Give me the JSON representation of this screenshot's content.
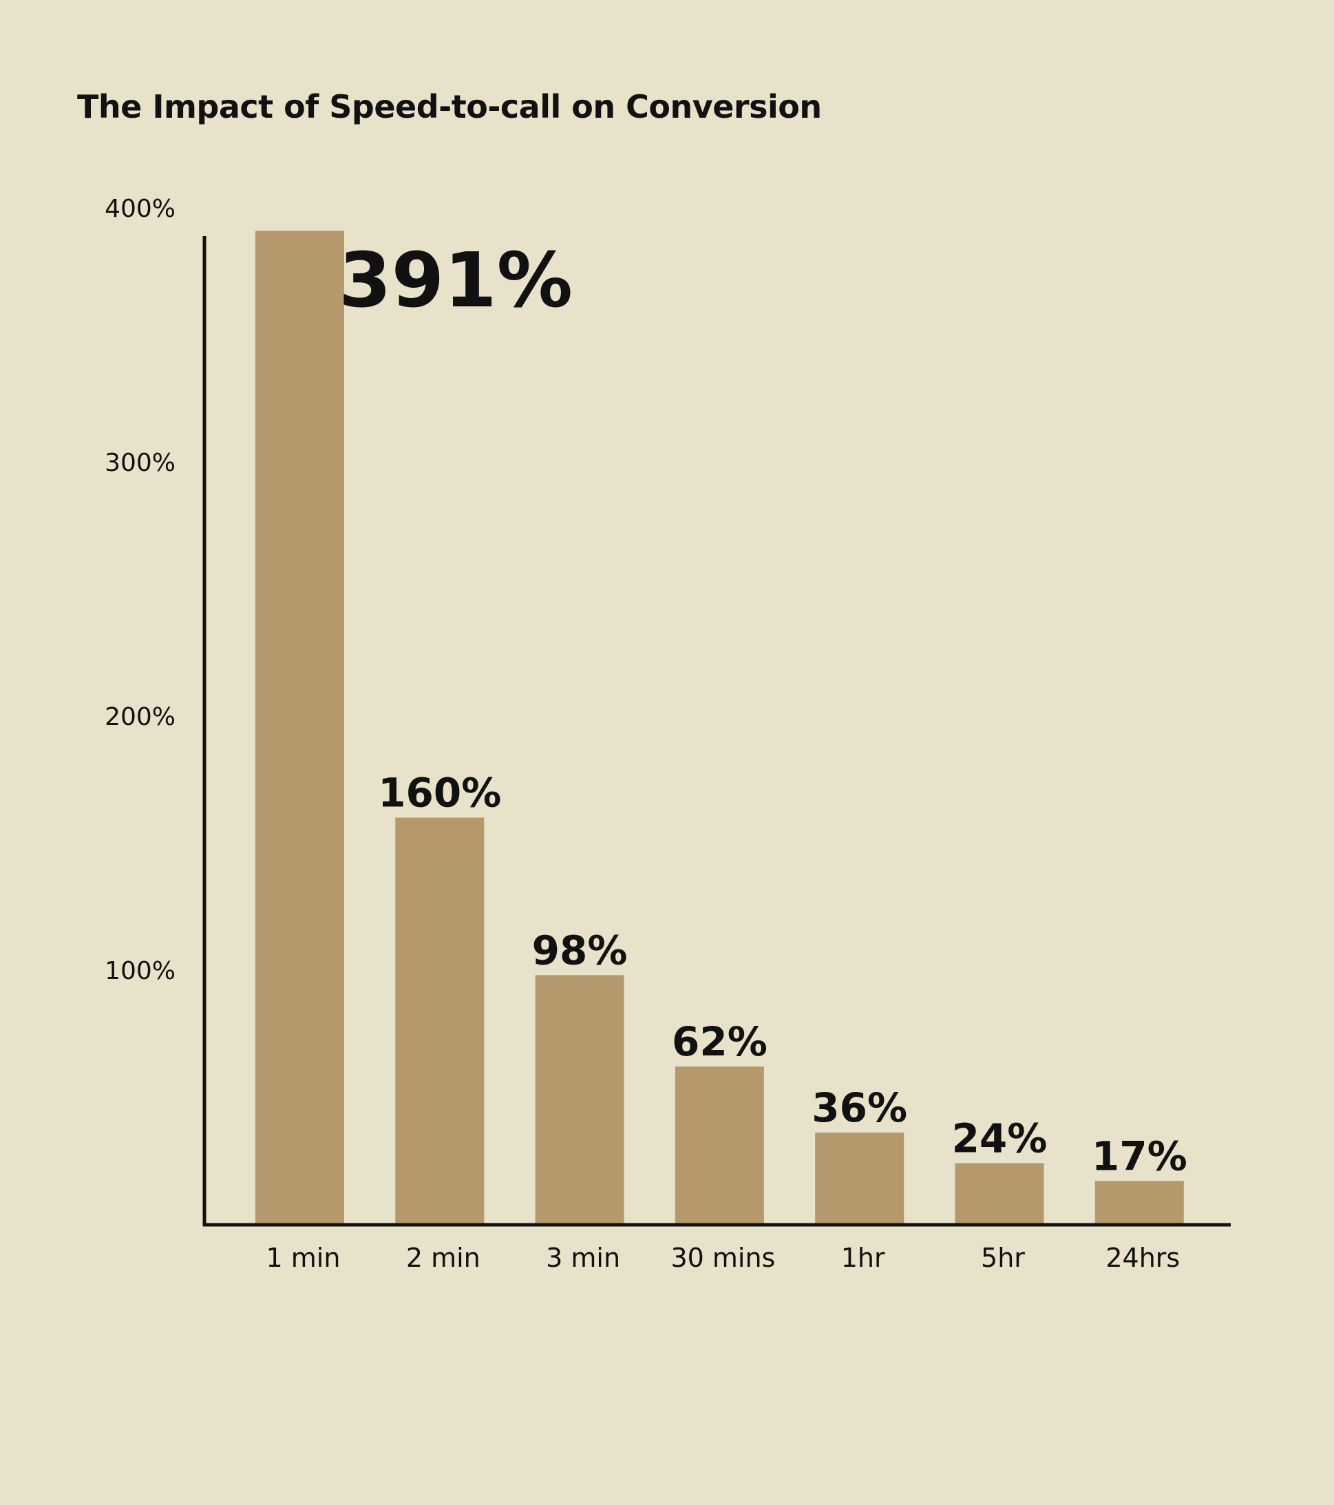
{
  "chart_data": {
    "type": "bar",
    "title": "The Impact of Speed-to-call on Conversion",
    "categories": [
      "1 min",
      "2 min",
      "3 min",
      "30 mins",
      "1hr",
      "5hr",
      "24hrs"
    ],
    "values": [
      391,
      160,
      98,
      62,
      36,
      24,
      17
    ],
    "data_labels": [
      "391%",
      "160%",
      "98%",
      "62%",
      "36%",
      "24%",
      "17%"
    ],
    "y_ticks": [
      100,
      200,
      300,
      400
    ],
    "y_tick_labels": [
      "100%",
      "200%",
      "300%",
      "400%"
    ],
    "ylim": [
      0,
      400
    ],
    "xlabel": "",
    "ylabel": "",
    "grid": false,
    "legend": "none",
    "colors": {
      "background": "#e8e2ca",
      "bar": "#b5986c",
      "axis": "#111111",
      "text": "#111111"
    }
  }
}
